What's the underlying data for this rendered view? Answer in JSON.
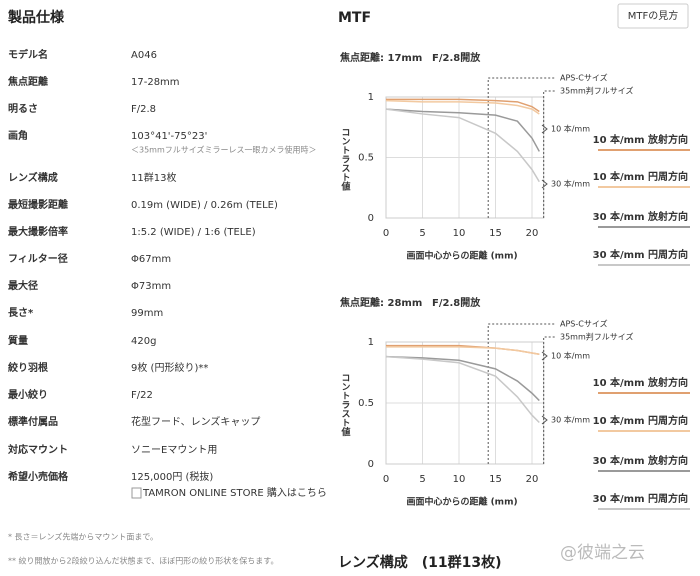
{
  "header": {
    "title": "製品仕様"
  },
  "specs": {
    "rows": [
      {
        "label": "モデル名",
        "value": "A046"
      },
      {
        "label": "焦点距離",
        "value": "17-28mm"
      },
      {
        "label": "明るさ",
        "value": "F/2.8"
      },
      {
        "label": "画角",
        "value": "103°41'-75°23'",
        "note": "＜35mmフルサイズミラーレス一眼カメラ使用時＞"
      },
      {
        "label": "レンズ構成",
        "value": "11群13枚"
      },
      {
        "label": "最短撮影距離",
        "value": "0.19m (WIDE) / 0.26m (TELE)"
      },
      {
        "label": "最大撮影倍率",
        "value": "1:5.2 (WIDE) / 1:6 (TELE)"
      },
      {
        "label": "フィルター径",
        "value": "Φ67mm"
      },
      {
        "label": "最大径",
        "value": "Φ73mm"
      },
      {
        "label": "長さ*",
        "value": "99mm"
      },
      {
        "label": "質量",
        "value": "420g"
      },
      {
        "label": "絞り羽根",
        "value": "9枚 (円形絞り)**"
      },
      {
        "label": "最小絞り",
        "value": "F/22"
      },
      {
        "label": "標準付属品",
        "value": "花型フード、レンズキャップ"
      },
      {
        "label": "対応マウント",
        "value": "ソニーEマウント用"
      },
      {
        "label": "希望小売価格",
        "value": "125,000円 (税抜)",
        "link": "TAMRON ONLINE STORE 購入はこちら"
      }
    ]
  },
  "footnotes": [
    "* 長さ＝レンズ先端からマウント面まで。",
    "** 絞り開放から2段絞り込んだ状態まで、ほぼ円形の絞り形状を保ちます。"
  ],
  "mtf": {
    "title": "MTF",
    "button": "MTFの見方"
  },
  "next_section": "レンズ構成　(11群13枚)",
  "watermark": "@彼端之云",
  "chart_data": [
    {
      "type": "line",
      "title": "焦点距離: 17mm",
      "subtitle": "F/2.8開放",
      "x_label": "画面中心からの距離 (mm)",
      "y_label": "コントラスト値",
      "x": [
        0,
        5,
        10,
        15,
        18,
        20,
        21
      ],
      "xlim": [
        0,
        21.6
      ],
      "xticks": [
        0,
        5,
        10,
        15,
        20
      ],
      "ylim": [
        0,
        1
      ],
      "yticks": [
        0,
        0.5,
        1
      ],
      "grid": true,
      "series": [
        {
          "name": "10 本/mm 放射方向",
          "color": "#e0a070",
          "values": [
            0.98,
            0.98,
            0.98,
            0.97,
            0.96,
            0.92,
            0.88
          ]
        },
        {
          "name": "10 本/mm 円周方向",
          "color": "#f2c9a0",
          "values": [
            0.97,
            0.96,
            0.96,
            0.95,
            0.93,
            0.9,
            0.86
          ]
        },
        {
          "name": "30 本/mm 放射方向",
          "color": "#9a9a9a",
          "values": [
            0.9,
            0.88,
            0.87,
            0.85,
            0.8,
            0.66,
            0.55
          ]
        },
        {
          "name": "30 本/mm 円周方向",
          "color": "#c8c8c8",
          "values": [
            0.9,
            0.86,
            0.83,
            0.7,
            0.55,
            0.4,
            0.3
          ]
        }
      ],
      "annotations": [
        {
          "text": "APS-Cサイズ",
          "x": 14
        },
        {
          "text": "35mm判フルサイズ",
          "x": 21.6
        }
      ],
      "curve_labels": [
        "10 本/mm",
        "30 本/mm"
      ]
    },
    {
      "type": "line",
      "title": "焦点距離: 28mm",
      "subtitle": "F/2.8開放",
      "x_label": "画面中心からの距離 (mm)",
      "y_label": "コントラスト値",
      "x": [
        0,
        5,
        10,
        15,
        18,
        20,
        21
      ],
      "xlim": [
        0,
        21.6
      ],
      "xticks": [
        0,
        5,
        10,
        15,
        20
      ],
      "ylim": [
        0,
        1
      ],
      "yticks": [
        0,
        0.5,
        1
      ],
      "grid": true,
      "series": [
        {
          "name": "10 本/mm 放射方向",
          "color": "#e0a070",
          "values": [
            0.97,
            0.97,
            0.97,
            0.95,
            0.93,
            0.91,
            0.9
          ]
        },
        {
          "name": "10 本/mm 円周方向",
          "color": "#f2c9a0",
          "values": [
            0.96,
            0.96,
            0.96,
            0.95,
            0.93,
            0.91,
            0.9
          ]
        },
        {
          "name": "30 本/mm 放射方向",
          "color": "#9a9a9a",
          "values": [
            0.88,
            0.87,
            0.85,
            0.78,
            0.68,
            0.58,
            0.52
          ]
        },
        {
          "name": "30 本/mm 円周方向",
          "color": "#c8c8c8",
          "values": [
            0.88,
            0.86,
            0.83,
            0.72,
            0.55,
            0.4,
            0.34
          ]
        }
      ],
      "annotations": [
        {
          "text": "APS-Cサイズ",
          "x": 14
        },
        {
          "text": "35mm判フルサイズ",
          "x": 21.6
        }
      ],
      "curve_labels": [
        "10 本/mm",
        "30 本/mm"
      ]
    }
  ]
}
